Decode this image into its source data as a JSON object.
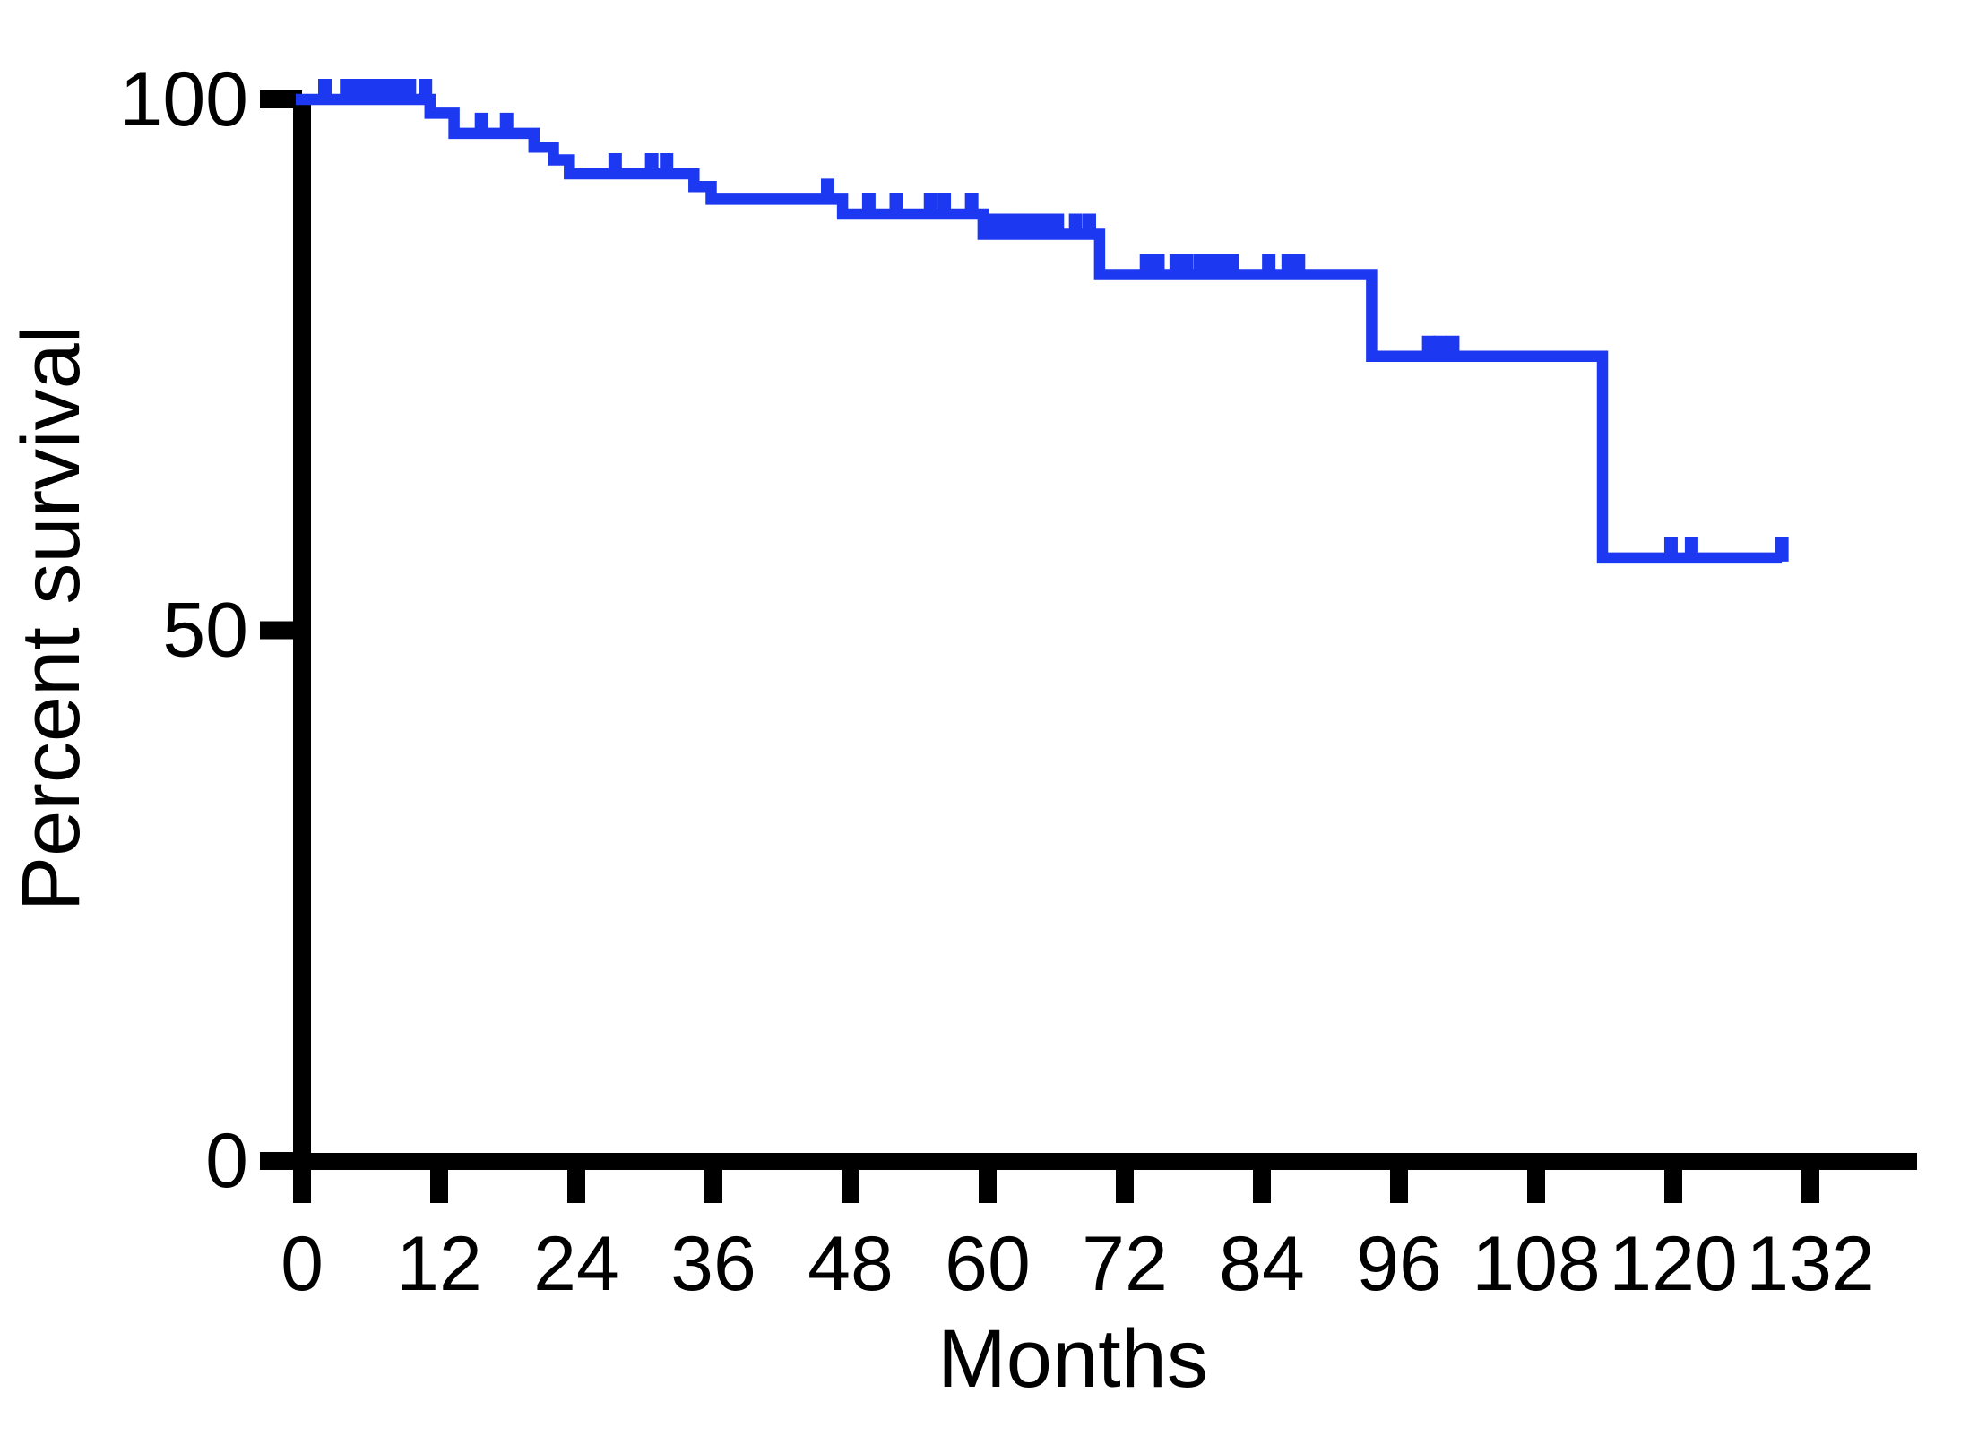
{
  "chart_data": {
    "type": "line",
    "subtype": "kaplan-meier-step",
    "title": "",
    "xlabel": "Months",
    "ylabel": "Percent survival",
    "xlim": [
      0,
      141
    ],
    "ylim": [
      0,
      100
    ],
    "x_ticks": [
      0,
      12,
      24,
      36,
      48,
      60,
      72,
      84,
      96,
      108,
      120,
      132
    ],
    "y_ticks": [
      0,
      50,
      100
    ],
    "grid": false,
    "legend": "none",
    "curve_color": "#1c38f0",
    "axis_color": "#000000",
    "series": [
      {
        "name": "Percent survival",
        "steps": [
          [
            0,
            100.0
          ],
          [
            11.2,
            98.7
          ],
          [
            13.3,
            96.8
          ],
          [
            20.3,
            95.5
          ],
          [
            22.0,
            94.3
          ],
          [
            23.4,
            93.0
          ],
          [
            34.3,
            91.8
          ],
          [
            35.8,
            90.6
          ],
          [
            47.3,
            89.2
          ],
          [
            59.6,
            87.3
          ],
          [
            69.8,
            83.5
          ],
          [
            93.6,
            75.8
          ],
          [
            113.8,
            56.8
          ]
        ],
        "curve_end_month": 129.5,
        "censor_times": [
          2.0,
          3.9,
          4.7,
          5.5,
          6.3,
          7.1,
          7.9,
          8.7,
          9.4,
          10.8,
          15.7,
          17.9,
          27.4,
          30.6,
          31.9,
          46.0,
          49.6,
          52.0,
          55.0,
          56.2,
          58.6,
          60.5,
          61.3,
          62.1,
          62.9,
          63.7,
          64.5,
          65.3,
          66.1,
          67.7,
          68.9,
          73.9,
          74.9,
          76.5,
          77.4,
          78.6,
          79.5,
          80.6,
          81.4,
          84.6,
          86.3,
          87.2,
          98.6,
          99.6,
          100.7,
          119.8,
          121.6,
          129.5
        ]
      }
    ]
  }
}
